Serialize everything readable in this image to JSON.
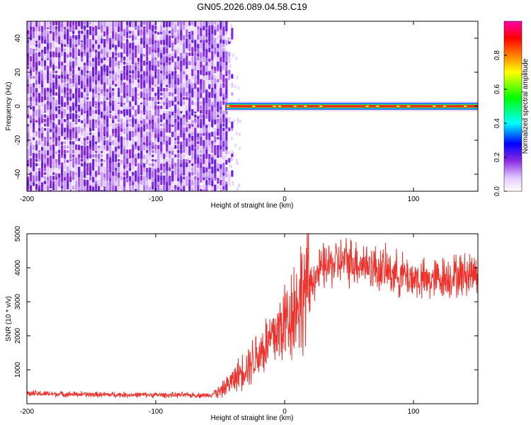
{
  "figure_title": "GN05.2026.089.04.58.C19",
  "chart_data": [
    {
      "type": "heatmap",
      "xlabel": "Height of straight line (km)",
      "ylabel": "Frequency (Hz)",
      "xlim": [
        -200,
        150
      ],
      "ylim": [
        -50,
        50
      ],
      "x_ticks": [
        -200,
        -100,
        0,
        100
      ],
      "y_ticks": [
        -40,
        -20,
        0,
        20,
        40
      ],
      "colorbar": {
        "label": "Normalized spectral amplitude",
        "range": [
          0,
          1
        ],
        "ticks": [
          "0.0",
          "0.2",
          "0.4",
          "0.6",
          "0.8"
        ],
        "colormap": [
          "#ffffff",
          "#e2c8ff",
          "#8a2be2",
          "#0000ff",
          "#00ffff",
          "#00ff00",
          "#ffff00",
          "#ff7f00",
          "#ff0000",
          "#ff00aa"
        ]
      },
      "regions": [
        {
          "x_range": [
            -200,
            -45
          ],
          "frequency_range": [
            -50,
            50
          ],
          "amplitude": "0.1-0.3 (noise)"
        },
        {
          "x_range": [
            -45,
            150
          ],
          "frequency": 0,
          "amplitude": "0.8-1.0 (signal line)"
        }
      ]
    },
    {
      "type": "line",
      "xlabel": "Height of straight line (km)",
      "ylabel": "SNR (10 * v/v)",
      "xlim": [
        -200,
        150
      ],
      "ylim": [
        0,
        5000
      ],
      "x_ticks": [
        -200,
        -100,
        0,
        100
      ],
      "y_ticks": [
        1000,
        2000,
        3000,
        4000,
        5000
      ],
      "color": "#f0322d",
      "series": [
        {
          "x": [
            -200,
            -150,
            -100,
            -60,
            -50,
            -40,
            -30,
            -20,
            -10,
            0,
            10,
            20,
            30,
            40,
            50,
            60,
            70,
            80,
            90,
            100,
            110,
            120,
            130,
            140,
            150
          ],
          "y": [
            300,
            270,
            260,
            250,
            350,
            700,
            1100,
            1500,
            1900,
            2400,
            3000,
            3600,
            4000,
            4150,
            4200,
            4150,
            4000,
            3900,
            3800,
            3700,
            3600,
            3700,
            3750,
            3800,
            3900
          ]
        }
      ]
    }
  ]
}
